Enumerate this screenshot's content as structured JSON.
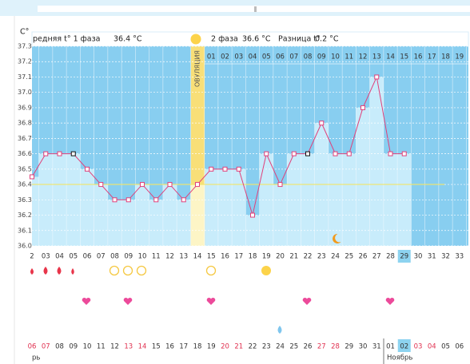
{
  "chart_data": {
    "type": "line",
    "unit_label": "C°",
    "phase1_label": "редняя t° 1 фаза",
    "phase1_value": "36.4 °C",
    "phase2_label": "2 фаза",
    "phase2_value": "36.6 °C",
    "diff_label": "Разница t°",
    "diff_value": "0.2 °C",
    "ovulation_label": "ОВУЛЯЦИЯ",
    "categories": [
      "2",
      "03",
      "04",
      "05",
      "06",
      "07",
      "08",
      "09",
      "10",
      "11",
      "12",
      "13",
      "14",
      "15",
      "16",
      "17",
      "18",
      "19",
      "20",
      "21",
      "22",
      "23",
      "24",
      "25",
      "26",
      "27",
      "28",
      "29",
      "30",
      "31",
      "32",
      "33"
    ],
    "values": [
      36.45,
      36.6,
      36.6,
      36.6,
      36.5,
      36.4,
      36.3,
      36.3,
      36.4,
      36.3,
      36.4,
      36.3,
      36.4,
      36.5,
      36.5,
      36.5,
      36.2,
      36.6,
      36.4,
      36.6,
      36.6,
      36.8,
      36.6,
      36.6,
      36.9,
      37.1,
      36.6,
      36.6,
      null,
      null,
      null,
      null
    ],
    "marker_colors": [
      "#e0407a",
      "#e0407a",
      "#e0407a",
      "#111111",
      "#e0407a",
      "#e0407a",
      "#e0407a",
      "#e0407a",
      "#e0407a",
      "#e0407a",
      "#e0407a",
      "#e0407a",
      "#e0407a",
      "#e0407a",
      "#e0407a",
      "#e0407a",
      "#e0407a",
      "#e0407a",
      "#e0407a",
      "#e0407a",
      "#111111",
      "#e0407a",
      "#e0407a",
      "#e0407a",
      "#e0407a",
      "#e0407a",
      "#e0407a",
      "#e0407a",
      null,
      null,
      null,
      null
    ],
    "color": "#e0407a",
    "cover_line": 36.4,
    "phase2_days": [
      "01",
      "02",
      "03",
      "04",
      "05",
      "06",
      "07",
      "08",
      "09",
      "10",
      "11",
      "12",
      "13",
      "14",
      "15",
      "16",
      "17",
      "18",
      "19"
    ],
    "calendar_dates": [
      "06",
      "07",
      "08",
      "09",
      "10",
      "11",
      "12",
      "13",
      "14",
      "15",
      "16",
      "17",
      "18",
      "19",
      "20",
      "21",
      "22",
      "23",
      "24",
      "25",
      "26",
      "27",
      "28",
      "29",
      "30",
      "31",
      "01",
      "02",
      "03",
      "04",
      "05",
      "06"
    ],
    "calendar_weekend": [
      true,
      true,
      false,
      false,
      false,
      false,
      false,
      true,
      true,
      false,
      false,
      false,
      false,
      false,
      true,
      true,
      false,
      false,
      false,
      false,
      false,
      true,
      true,
      false,
      false,
      false,
      false,
      false,
      true,
      true,
      false,
      false
    ],
    "month_prev": "рь",
    "month_next": "Ноябрь",
    "ylim": [
      36.0,
      37.3
    ],
    "yticks": [
      {
        "value": 36.0,
        "label": "36.0"
      },
      36.1,
      36.2,
      36.3,
      36.4,
      36.5,
      36.6,
      36.7,
      36.8,
      36.9,
      {
        "value": 37.0,
        "label": "37.0"
      },
      37.1,
      37.2,
      37.3
    ],
    "grid": true
  }
}
